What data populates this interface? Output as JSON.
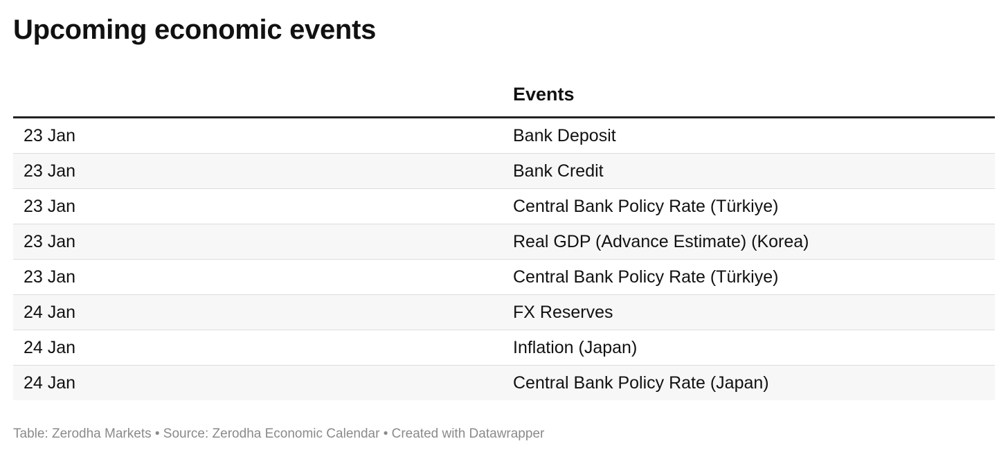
{
  "title": "Upcoming economic events",
  "chart_data": {
    "type": "table",
    "columns": [
      "",
      "Events"
    ],
    "rows": [
      {
        "date": "23 Jan",
        "event": "Bank Deposit"
      },
      {
        "date": "23 Jan",
        "event": "Bank Credit"
      },
      {
        "date": "23 Jan",
        "event": "Central Bank Policy Rate (Türkiye)"
      },
      {
        "date": "23 Jan",
        "event": "Real GDP (Advance Estimate) (Korea)"
      },
      {
        "date": "23 Jan",
        "event": "Central Bank Policy Rate (Türkiye)"
      },
      {
        "date": "24 Jan",
        "event": "FX Reserves"
      },
      {
        "date": "24 Jan",
        "event": "Inflation (Japan)"
      },
      {
        "date": "24 Jan",
        "event": "Central Bank Policy Rate (Japan)"
      }
    ]
  },
  "footer": "Table: Zerodha Markets • Source: Zerodha Economic Calendar • Created with Datawrapper",
  "colors": {
    "text": "#111111",
    "header_rule": "#222222",
    "row_stripe": "#f7f7f7",
    "row_divider": "#dddddd",
    "footer_text": "#8a8a8a"
  }
}
